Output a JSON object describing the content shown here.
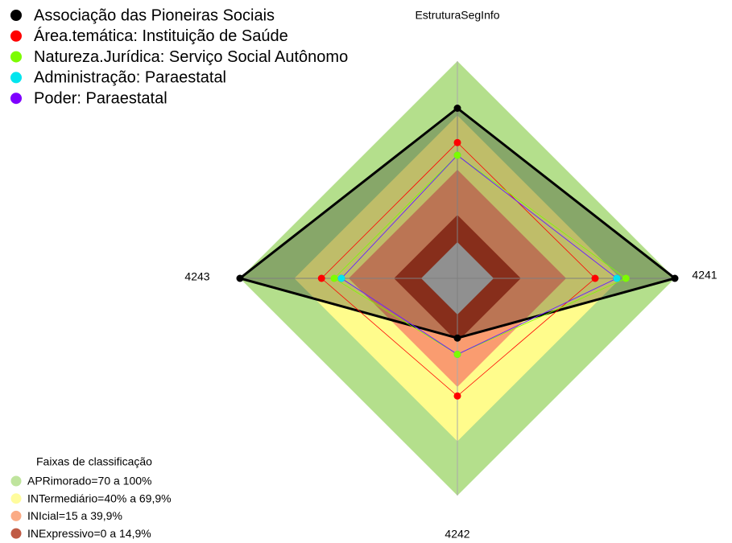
{
  "chart_data": {
    "type": "radar",
    "categories": [
      "EstruturaSegInfo",
      "4241",
      "4242",
      "4243"
    ],
    "rlim": [
      -20,
      100
    ],
    "series": [
      {
        "name": "Associação das Pioneiras Sociais",
        "color": "#000000",
        "filled": true,
        "values": [
          74,
          100,
          13,
          100
        ]
      },
      {
        "name": "Área.temática: Instituição de Saúde",
        "color": "#ff0000",
        "values": [
          55,
          56,
          45,
          55
        ]
      },
      {
        "name": "Natureza.Jurídica: Serviço Social Autônomo",
        "color": "#7cfc00",
        "values": [
          48,
          73,
          22,
          48
        ]
      },
      {
        "name": "Administração: Paraestatal",
        "color": "#00e5ee",
        "values": [
          48,
          68,
          22,
          44
        ]
      },
      {
        "name": "Poder: Paraestatal",
        "color": "#7f00ff",
        "values": [
          48,
          68,
          22,
          44
        ]
      }
    ],
    "bands_title": "Faixas de classificação",
    "bands": [
      {
        "label": "APRimorado=70 a 100%",
        "color": "#b4df8c",
        "from": 70,
        "to": 100
      },
      {
        "label": "INTermediário=40% a 69,9%",
        "color": "#fffc8c",
        "from": 40,
        "to": 70
      },
      {
        "label": "INIcial=15 a 39,9%",
        "color": "#fa9c70",
        "from": 15,
        "to": 40
      },
      {
        "label": "INExpressivo=0 a 14,9%",
        "color": "#b53e24",
        "from": 0,
        "to": 15
      }
    ]
  }
}
